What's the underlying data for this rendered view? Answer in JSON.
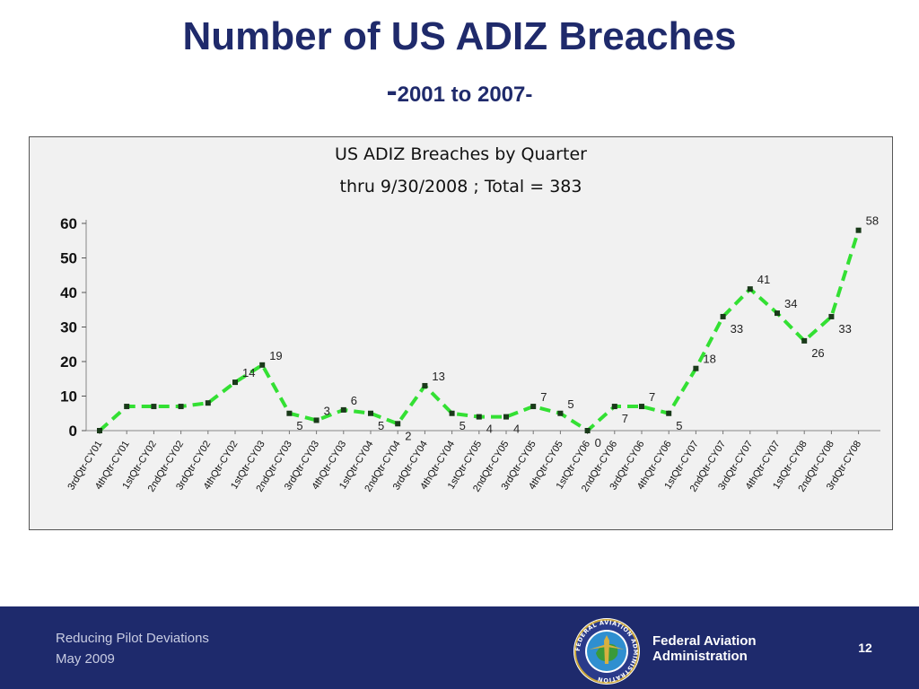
{
  "slide": {
    "title": "Number of US ADIZ Breaches",
    "subtitle_dash": "-",
    "subtitle": "2001 to 2007-"
  },
  "chart_data": {
    "type": "line",
    "title": "US ADIZ Breaches by Quarter",
    "subtitle": "thru 9/30/2008 ; Total = 383",
    "categories": [
      "3rdQtr-CY01",
      "4thQtr-CY01",
      "1stQtr-CY02",
      "2ndQtr-CY02",
      "3rdQtr-CY02",
      "4thQtr-CY02",
      "1stQtr-CY03",
      "2ndQtr-CY03",
      "3rdQtr-CY03",
      "4thQtr-CY03",
      "1stQtr-CY04",
      "2ndQtr-CY04",
      "3rdQtr-CY04",
      "4thQtr-CY04",
      "1stQtr-CY05",
      "2ndQtr-CY05",
      "3rdQtr-CY05",
      "4thQtr-CY05",
      "1stQtr-CY06",
      "2ndQtr-CY06",
      "3rdQtr-CY06",
      "4thQtr-CY06",
      "1stQtr-CY07",
      "2ndQtr-CY07",
      "3rdQtr-CY07",
      "4thQtr-CY07",
      "1stQtr-CY08",
      "2ndQtr-CY08",
      "3rdQtr-CY08"
    ],
    "values": [
      0,
      7,
      7,
      7,
      8,
      14,
      19,
      5,
      3,
      6,
      5,
      2,
      13,
      5,
      4,
      4,
      7,
      5,
      0,
      7,
      7,
      5,
      18,
      33,
      41,
      34,
      26,
      33,
      58
    ],
    "data_labels": [
      "",
      "",
      "",
      "",
      "",
      "14",
      "19",
      "5",
      "3",
      "6",
      "5",
      "2",
      "13",
      "5",
      "4",
      "4",
      "7",
      "5",
      "0",
      "7",
      "7",
      "5",
      "18",
      "33",
      "41",
      "34",
      "26",
      "33",
      "58"
    ],
    "yticks": [
      0,
      10,
      20,
      30,
      40,
      50,
      60
    ],
    "ylim": [
      0,
      60
    ],
    "xlabel": "",
    "ylabel": "",
    "line_color": "#33e033",
    "marker_color": "#1a3a1a",
    "legend": "none",
    "grid": false
  },
  "footer": {
    "line1": "Reducing Pilot Deviations",
    "line2": "May 2009",
    "agency_line1": "Federal Aviation",
    "agency_line2": "Administration",
    "page_number": "12",
    "background": "#1e2a6c"
  },
  "logo": {
    "icon": "faa-seal-icon",
    "ring_text": "FEDERAL AVIATION ADMINISTRATION"
  }
}
